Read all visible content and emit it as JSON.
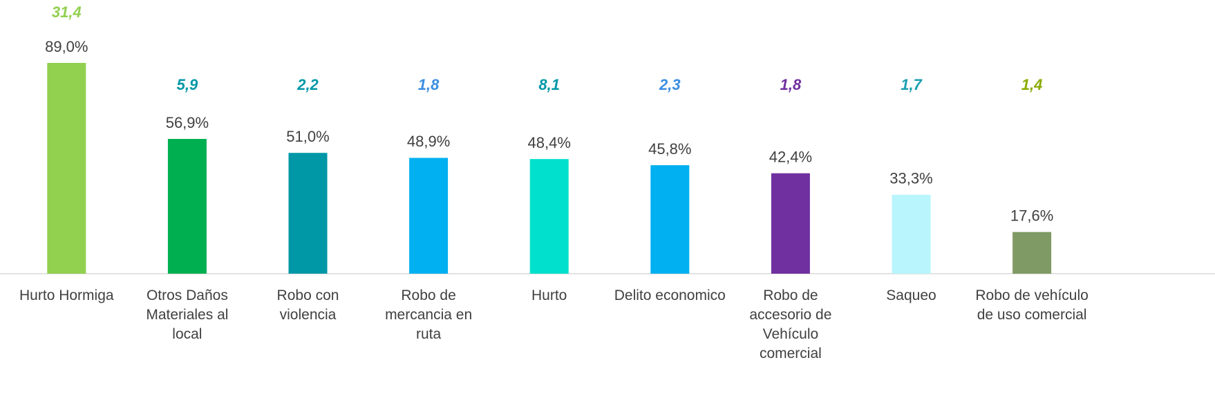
{
  "chart_data": {
    "type": "bar",
    "categories": [
      "Hurto Hormiga",
      "Otros Daños Materiales al local",
      "Robo con violencia",
      "Robo de mercancia en ruta",
      "Hurto",
      "Delito economico",
      "Robo de accesorio de Vehículo comercial",
      "Saqueo",
      "Robo de vehículo de uso comercial"
    ],
    "values": [
      89.0,
      56.9,
      51.0,
      48.9,
      48.4,
      45.8,
      42.4,
      33.3,
      17.6
    ],
    "value_labels": [
      "89,0%",
      "56,9%",
      "51,0%",
      "48,9%",
      "48,4%",
      "45,8%",
      "42,4%",
      "33,3%",
      "17,6%"
    ],
    "colors": [
      "#92d050",
      "#00b050",
      "#0097a7",
      "#00b0f0",
      "#00e0cc",
      "#00b0f0",
      "#7030a0",
      "#b9f5fc",
      "#7f9a65"
    ],
    "annotations": {
      "values": [
        31.4,
        5.9,
        2.2,
        1.8,
        8.1,
        2.3,
        1.8,
        1.7,
        1.4
      ],
      "value_labels": [
        "31,4",
        "5,9",
        "2,2",
        "1,8",
        "8,1",
        "2,3",
        "1,8",
        "1,7",
        "1,4"
      ],
      "colors": [
        "#92d050",
        "#0097a7",
        "#0097a7",
        "#3b8ee0",
        "#0097a7",
        "#3b8ee0",
        "#7030a0",
        "#1c9fb0",
        "#8aaa00"
      ]
    }
  }
}
